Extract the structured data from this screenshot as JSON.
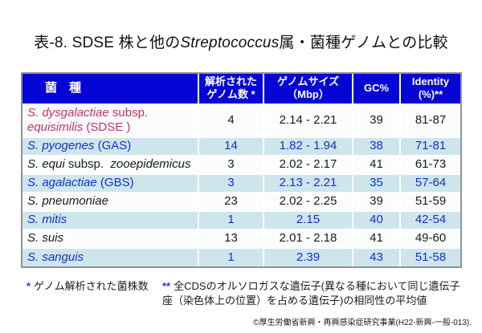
{
  "title": {
    "part1": "表-8. SDSE 株と他の",
    "part2_italic": "Streptococcus",
    "part3": "属・菌種ゲノムとの比較"
  },
  "table": {
    "columns": [
      {
        "label": "菌　種"
      },
      {
        "label": "解析された\nゲノム数 *"
      },
      {
        "label": "ゲノムサイズ\n（Mbp）"
      },
      {
        "label": "GC%"
      },
      {
        "label": "Identity\n(%)**"
      }
    ],
    "rows": [
      {
        "species_segments": [
          {
            "t": "S. dysgalactiae",
            "i": true
          },
          {
            "t": " subsp.\n",
            "i": false
          },
          {
            "t": "equisimilis",
            "i": true
          },
          {
            "t": " (SDSE )",
            "i": false
          }
        ],
        "values": [
          "4",
          "2.14 - 2.21",
          "39",
          "81-87"
        ],
        "species_color": "crimson",
        "value_color": "black",
        "bg": "white",
        "tall": true
      },
      {
        "species_segments": [
          {
            "t": "S. pyogenes",
            "i": true
          },
          {
            "t": " (GAS)",
            "i": false
          }
        ],
        "values": [
          "14",
          "1.82 - 1.94",
          "38",
          "71-81"
        ],
        "species_color": "blue",
        "value_color": "blue",
        "bg": "blue",
        "tall": false
      },
      {
        "species_segments": [
          {
            "t": "S. equi",
            "i": true
          },
          {
            "t": " subsp.  ",
            "i": false
          },
          {
            "t": "zooepidemicus",
            "i": true
          }
        ],
        "values": [
          "3",
          "2.02 - 2.17",
          "41",
          "61-73"
        ],
        "species_color": "black",
        "value_color": "black",
        "bg": "white",
        "tall": false
      },
      {
        "species_segments": [
          {
            "t": "S. agalactiae",
            "i": true
          },
          {
            "t": " (GBS)",
            "i": false
          }
        ],
        "values": [
          "3",
          "2.13 - 2.21",
          "35",
          "57-64"
        ],
        "species_color": "blue",
        "value_color": "blue",
        "bg": "blue",
        "tall": false
      },
      {
        "species_segments": [
          {
            "t": "S. pneumoniae",
            "i": true
          }
        ],
        "values": [
          "23",
          "2.02 - 2.25",
          "39",
          "51-59"
        ],
        "species_color": "black",
        "value_color": "black",
        "bg": "white",
        "tall": false
      },
      {
        "species_segments": [
          {
            "t": "S. mitis",
            "i": true
          }
        ],
        "values": [
          "1",
          "2.15",
          "40",
          "42-54"
        ],
        "species_color": "blue",
        "value_color": "blue",
        "bg": "blue",
        "tall": false
      },
      {
        "species_segments": [
          {
            "t": "S. suis",
            "i": true
          }
        ],
        "values": [
          "13",
          "2.01 - 2.18",
          "41",
          "49-60"
        ],
        "species_color": "black",
        "value_color": "black",
        "bg": "white",
        "tall": false
      },
      {
        "species_segments": [
          {
            "t": "S. sanguis",
            "i": true
          }
        ],
        "values": [
          "1",
          "2.39",
          "43",
          "51-58"
        ],
        "species_color": "blue",
        "value_color": "blue",
        "bg": "blue",
        "tall": false
      }
    ]
  },
  "footnotes": {
    "left_star": "*",
    "left_text": "ゲノム解析された菌株数",
    "right_star": "**",
    "right_text": "全CDSのオルソロガスな遺伝子(異なる種において同じ遺伝子座（染色体上の位置）を占める遺伝子)の相同性の平均値"
  },
  "credit": "©厚生労働省新興・再興感染症研究事業(H22-新興-一般-013).",
  "colors": {
    "header_blue": "#0505D6",
    "pale_blue_row": "#CEE5EC",
    "crimson_text": "#C13366",
    "blue_text": "#1133CC",
    "star_blue": "#3333CC",
    "border_gray": "#8E939A"
  }
}
